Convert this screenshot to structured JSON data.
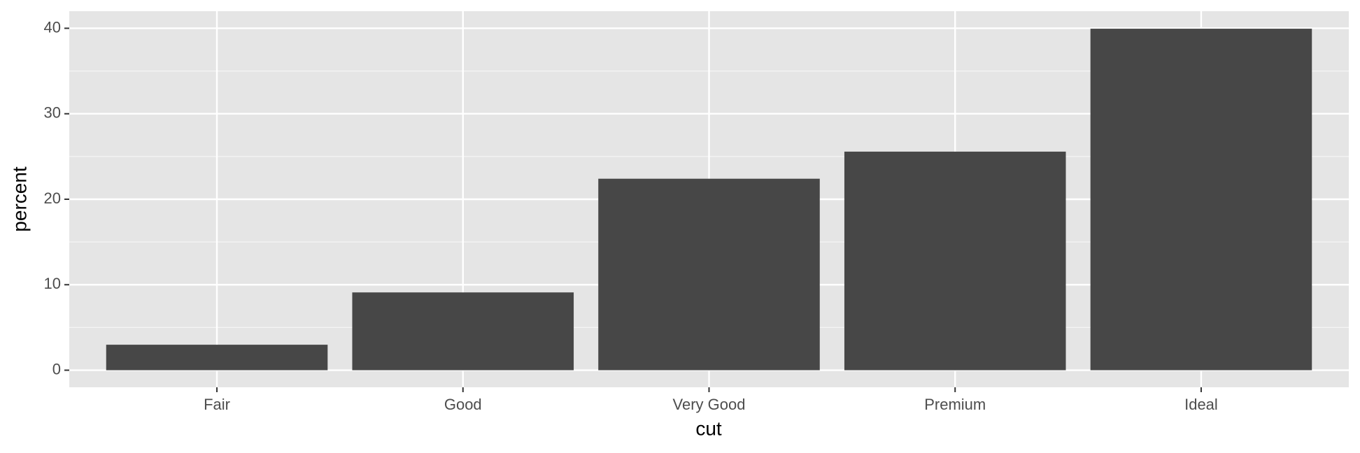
{
  "chart_data": {
    "type": "bar",
    "categories": [
      "Fair",
      "Good",
      "Very Good",
      "Premium",
      "Ideal"
    ],
    "values": [
      2.98,
      9.1,
      22.4,
      25.57,
      39.95
    ],
    "color": "#474747",
    "x_label": "cut",
    "y_label": "percent",
    "ylim": [
      -2,
      42
    ],
    "yticks": [
      0,
      10,
      20,
      30,
      40
    ],
    "yminor": [
      5,
      15,
      25,
      35
    ],
    "grid": true
  }
}
